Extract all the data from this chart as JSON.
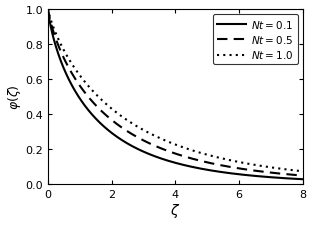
{
  "title": "",
  "xlabel": "$\\zeta$",
  "ylabel": "$\\varphi(\\zeta)$",
  "xlim": [
    0,
    8
  ],
  "ylim": [
    0,
    1
  ],
  "xticks": [
    0,
    2,
    4,
    6,
    8
  ],
  "yticks": [
    0,
    0.2,
    0.4,
    0.6,
    0.8,
    1.0
  ],
  "curves": [
    {
      "label": "$Nt = 0.1$",
      "linestyle": "solid",
      "linewidth": 1.5,
      "k": 0.72,
      "p": 0.78
    },
    {
      "label": "$Nt = 0.5$",
      "linestyle": "dashed",
      "linewidth": 1.5,
      "k": 0.58,
      "p": 0.8
    },
    {
      "label": "$Nt = 1.0$",
      "linestyle": "dotted",
      "linewidth": 1.5,
      "k": 0.48,
      "p": 0.82
    }
  ],
  "legend_loc": "upper right",
  "color": "black",
  "background": "white",
  "figsize": [
    3.12,
    2.26
  ],
  "dpi": 100
}
